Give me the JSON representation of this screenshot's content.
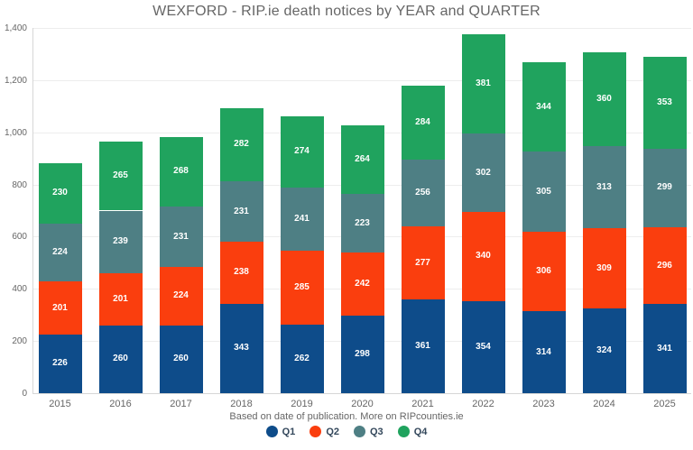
{
  "chart_data": {
    "type": "bar",
    "stacked": true,
    "title": "WEXFORD - RIP.ie death notices by YEAR and QUARTER",
    "caption": "Based on date of publication. More on RIPcounties.ie",
    "categories": [
      "2015",
      "2016",
      "2017",
      "2018",
      "2019",
      "2020",
      "2021",
      "2022",
      "2023",
      "2024",
      "2025"
    ],
    "series": [
      {
        "name": "Q1",
        "color": "#0e4c8a",
        "values": [
          226,
          260,
          260,
          343,
          262,
          298,
          361,
          354,
          314,
          324,
          341
        ]
      },
      {
        "name": "Q2",
        "color": "#fa3e0e",
        "values": [
          201,
          201,
          224,
          238,
          285,
          242,
          277,
          340,
          306,
          309,
          296
        ]
      },
      {
        "name": "Q3",
        "color": "#4e7f84",
        "values": [
          224,
          239,
          231,
          231,
          241,
          223,
          256,
          302,
          305,
          313,
          299
        ]
      },
      {
        "name": "Q4",
        "color": "#20a35e",
        "values": [
          230,
          265,
          268,
          282,
          274,
          264,
          284,
          381,
          344,
          360,
          353
        ]
      }
    ],
    "totals": [
      881,
      965,
      983,
      1094,
      1062,
      1027,
      1178,
      1377,
      1269,
      1306,
      1289
    ],
    "ylim": [
      0,
      1400
    ],
    "ytick_interval": 200,
    "ytick_labels": [
      "0",
      "200",
      "400",
      "600",
      "800",
      "1,000",
      "1,200",
      "1,400"
    ],
    "grid": true,
    "data_labels": true,
    "legend_position": "bottom"
  }
}
